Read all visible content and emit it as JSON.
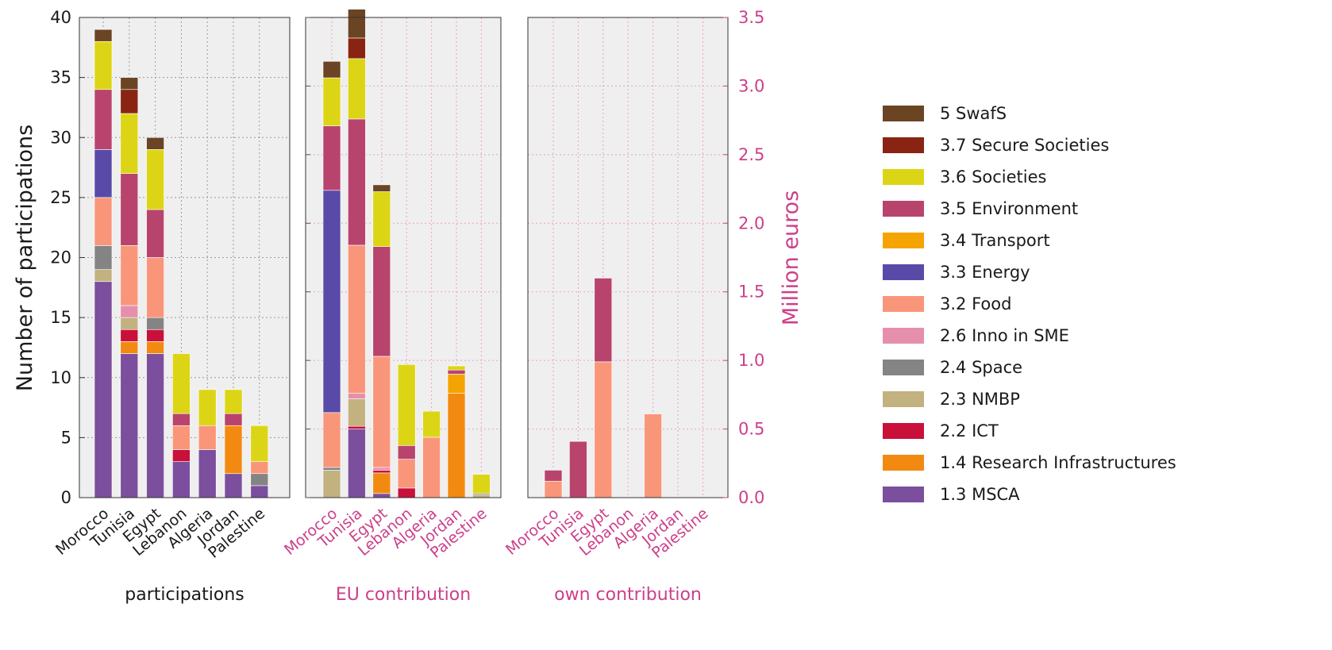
{
  "chart_data": {
    "type": "bar",
    "stacked": true,
    "countries": [
      "Morocco",
      "Tunisia",
      "Egypt",
      "Lebanon",
      "Algeria",
      "Jordan",
      "Palestine"
    ],
    "series": [
      {
        "name": "1.3 MSCA",
        "color": "#7b4f9d"
      },
      {
        "name": "1.4 Research Infrastructures",
        "color": "#f28a12"
      },
      {
        "name": "2.2 ICT",
        "color": "#c8103a"
      },
      {
        "name": "2.3 NMBP",
        "color": "#c2b280"
      },
      {
        "name": "2.4 Space",
        "color": "#848484"
      },
      {
        "name": "2.6 Inno in SME",
        "color": "#e68fac"
      },
      {
        "name": "3.2 Food",
        "color": "#f9967a"
      },
      {
        "name": "3.3 Energy",
        "color": "#5a4aa8"
      },
      {
        "name": "3.4 Transport",
        "color": "#f5a300"
      },
      {
        "name": "3.5 Environment",
        "color": "#b8446e"
      },
      {
        "name": "3.6 Societies",
        "color": "#dcd515"
      },
      {
        "name": "3.7 Secure Societies",
        "color": "#8a2412"
      },
      {
        "name": "5 SwafS",
        "color": "#6b4424"
      }
    ],
    "legend_position": "right",
    "grid": true,
    "panels": [
      {
        "xlabel": "participations",
        "ylabel": "Number of participations",
        "ylim": [
          0,
          40
        ],
        "yticks": [
          "0",
          "5",
          "10",
          "15",
          "20",
          "25",
          "30",
          "35",
          "40"
        ],
        "values": {
          "Morocco": [
            18,
            0,
            0,
            1,
            2,
            0,
            4,
            4,
            0,
            5,
            4,
            0,
            1
          ],
          "Tunisia": [
            12,
            1,
            1,
            1,
            0,
            1,
            5,
            0,
            0,
            6,
            5,
            2,
            1
          ],
          "Egypt": [
            12,
            1,
            1,
            0,
            1,
            0,
            5,
            0,
            0,
            4,
            5,
            0,
            1
          ],
          "Lebanon": [
            3,
            0,
            1,
            0,
            0,
            0,
            2,
            0,
            0,
            1,
            5,
            0,
            0
          ],
          "Algeria": [
            4,
            0,
            0,
            0,
            0,
            0,
            2,
            0,
            0,
            0,
            3,
            0,
            0
          ],
          "Jordan": [
            2,
            4,
            0,
            0,
            0,
            0,
            0,
            0,
            0,
            1,
            2,
            0,
            0
          ],
          "Palestine": [
            1,
            0,
            0,
            0,
            1,
            0,
            1,
            0,
            0,
            0,
            3,
            0,
            0
          ]
        }
      },
      {
        "xlabel": "EU contribution",
        "ylabel": "",
        "ylim": [
          0,
          3.5
        ],
        "values": {
          "Morocco": [
            0,
            0,
            0,
            0.2,
            0.02,
            0,
            0.4,
            1.62,
            0,
            0.47,
            0.35,
            0,
            0.12
          ],
          "Tunisia": [
            0.5,
            0,
            0.02,
            0.2,
            0,
            0.04,
            1.08,
            0,
            0,
            0.92,
            0.44,
            0.15,
            0.21
          ],
          "Egypt": [
            0.03,
            0.15,
            0.02,
            0,
            0,
            0.02,
            0.81,
            0,
            0,
            0.8,
            0.4,
            0,
            0.05
          ],
          "Lebanon": [
            0,
            0,
            0.07,
            0,
            0,
            0,
            0.21,
            0,
            0,
            0.1,
            0.59,
            0,
            0
          ],
          "Algeria": [
            0,
            0,
            0,
            0,
            0,
            0,
            0.44,
            0,
            0,
            0,
            0.19,
            0,
            0
          ],
          "Jordan": [
            0,
            0.76,
            0,
            0,
            0,
            0,
            0,
            0,
            0.14,
            0.03,
            0.03,
            0,
            0
          ],
          "Palestine": [
            0,
            0,
            0,
            0.02,
            0.01,
            0,
            0,
            0,
            0,
            0,
            0.14,
            0,
            0
          ]
        }
      },
      {
        "xlabel": "own contribution",
        "ylabel": "Million euros",
        "ylim": [
          0,
          3.5
        ],
        "yticks": [
          "0.0",
          "0.5",
          "1.0",
          "1.5",
          "2.0",
          "2.5",
          "3.0",
          "3.5"
        ],
        "values": {
          "Morocco": [
            0,
            0,
            0,
            0,
            0,
            0,
            0.12,
            0,
            0,
            0.08,
            0,
            0,
            0
          ],
          "Tunisia": [
            0,
            0,
            0,
            0,
            0,
            0,
            0,
            0,
            0,
            0.41,
            0,
            0,
            0
          ],
          "Egypt": [
            0,
            0,
            0,
            0,
            0,
            0,
            0.99,
            0,
            0,
            0.61,
            0,
            0,
            0
          ],
          "Lebanon": [
            0,
            0,
            0,
            0,
            0,
            0,
            0,
            0,
            0,
            0,
            0,
            0,
            0
          ],
          "Algeria": [
            0,
            0,
            0,
            0,
            0,
            0,
            0.61,
            0,
            0,
            0,
            0,
            0,
            0
          ],
          "Jordan": [
            0,
            0,
            0,
            0,
            0,
            0,
            0,
            0,
            0,
            0,
            0,
            0,
            0
          ],
          "Palestine": [
            0,
            0,
            0,
            0,
            0,
            0,
            0,
            0,
            0,
            0,
            0,
            0,
            0
          ]
        }
      }
    ]
  }
}
